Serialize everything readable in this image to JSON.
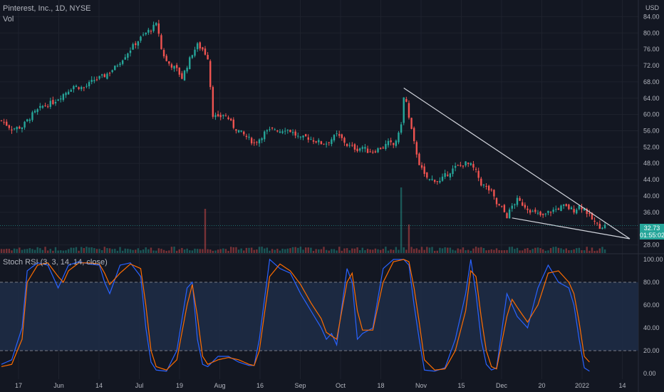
{
  "header": {
    "symbol": "Pinterest, Inc., 1D, NYSE",
    "volume_label": "Vol",
    "currency": "USD"
  },
  "indicator": {
    "title": "Stoch RSI (3, 3, 14, 14, close)"
  },
  "last_price": {
    "value": "32.73",
    "countdown": "01:55:02"
  },
  "colors": {
    "background": "#131722",
    "up": "#26a69a",
    "down": "#ef5350",
    "k_line": "#2962ff",
    "d_line": "#ff6d00",
    "trendline": "#d1d4dc",
    "band": "#1e2b45"
  },
  "chart_data": [
    {
      "type": "candlestick",
      "title": "Pinterest, Inc., 1D, NYSE",
      "ylim": [
        26,
        86
      ],
      "y_ticks": [
        "84.00",
        "80.00",
        "76.00",
        "72.00",
        "68.00",
        "64.00",
        "60.00",
        "56.00",
        "52.00",
        "48.00",
        "44.00",
        "40.00",
        "36.00",
        "32.00",
        "28.00"
      ],
      "x_ticks": [
        "17",
        "Jun",
        "14",
        "Jul",
        "19",
        "Aug",
        "16",
        "Sep",
        "Oct",
        "18",
        "Nov",
        "15",
        "Dec",
        "20",
        "2022",
        "14"
      ],
      "close_anchors": [
        [
          0,
          58.5
        ],
        [
          4,
          56.5
        ],
        [
          8,
          57
        ],
        [
          12,
          60
        ],
        [
          16,
          62
        ],
        [
          20,
          63
        ],
        [
          24,
          65
        ],
        [
          28,
          67
        ],
        [
          32,
          66.5
        ],
        [
          36,
          68.5
        ],
        [
          40,
          69.5
        ],
        [
          44,
          71.5
        ],
        [
          48,
          74.5
        ],
        [
          52,
          77.5
        ],
        [
          56,
          80
        ],
        [
          58,
          81
        ],
        [
          60,
          82
        ],
        [
          61,
          80
        ],
        [
          62,
          76
        ],
        [
          64,
          73
        ],
        [
          66,
          72
        ],
        [
          68,
          71
        ],
        [
          70,
          69
        ],
        [
          72,
          72
        ],
        [
          74,
          75
        ],
        [
          76,
          77
        ],
        [
          78,
          76
        ],
        [
          80,
          74
        ],
        [
          82,
          60
        ],
        [
          84,
          59
        ],
        [
          86,
          60
        ],
        [
          88,
          59
        ],
        [
          90,
          57
        ],
        [
          92,
          56
        ],
        [
          94,
          55
        ],
        [
          96,
          54
        ],
        [
          98,
          53
        ],
        [
          100,
          54
        ],
        [
          102,
          55.5
        ],
        [
          104,
          56
        ],
        [
          106,
          56.5
        ],
        [
          108,
          56
        ],
        [
          110,
          56.5
        ],
        [
          112,
          56
        ],
        [
          114,
          55
        ],
        [
          116,
          54
        ],
        [
          118,
          54.5
        ],
        [
          120,
          54
        ],
        [
          122,
          53.5
        ],
        [
          124,
          53
        ],
        [
          126,
          53
        ],
        [
          128,
          54
        ],
        [
          130,
          55
        ],
        [
          132,
          54
        ],
        [
          134,
          52.5
        ],
        [
          136,
          52
        ],
        [
          138,
          51.5
        ],
        [
          140,
          52
        ],
        [
          142,
          51
        ],
        [
          144,
          51
        ],
        [
          146,
          51.5
        ],
        [
          148,
          52
        ],
        [
          150,
          53
        ],
        [
          152,
          52.5
        ],
        [
          154,
          55
        ],
        [
          155,
          58
        ],
        [
          156,
          64
        ],
        [
          157,
          63
        ],
        [
          158,
          59
        ],
        [
          160,
          53
        ],
        [
          162,
          48
        ],
        [
          164,
          45
        ],
        [
          166,
          44
        ],
        [
          168,
          44
        ],
        [
          170,
          43.5
        ],
        [
          172,
          45
        ],
        [
          174,
          46
        ],
        [
          176,
          47
        ],
        [
          178,
          47.5
        ],
        [
          180,
          48
        ],
        [
          182,
          47.5
        ],
        [
          184,
          46
        ],
        [
          186,
          43
        ],
        [
          188,
          42
        ],
        [
          190,
          41
        ],
        [
          192,
          38
        ],
        [
          194,
          37
        ],
        [
          196,
          35
        ],
        [
          198,
          37.5
        ],
        [
          200,
          39
        ],
        [
          202,
          38
        ],
        [
          204,
          37
        ],
        [
          206,
          36
        ],
        [
          208,
          35.5
        ],
        [
          210,
          35
        ],
        [
          212,
          36
        ],
        [
          214,
          36.5
        ],
        [
          216,
          37
        ],
        [
          218,
          37.5
        ],
        [
          220,
          37
        ],
        [
          222,
          36.5
        ],
        [
          224,
          37.5
        ],
        [
          226,
          37
        ],
        [
          228,
          35
        ],
        [
          230,
          33.5
        ],
        [
          232,
          32.5
        ],
        [
          234,
          32.7
        ]
      ],
      "volume_note": "volume histogram colored by candle direction, spikes near Jul 31 and Oct 18",
      "annotations": [
        "descending trendline from Oct 18 high to Jan 2022",
        "lower trendline from Nov 30 low to Jan 2022"
      ]
    },
    {
      "type": "line",
      "title": "Stoch RSI (3, 3, 14, 14, close)",
      "ylim": [
        -5,
        105
      ],
      "y_ticks": [
        "100.00",
        "80.00",
        "60.00",
        "40.00",
        "20.00",
        "0.00"
      ],
      "band": [
        20,
        80
      ],
      "series": [
        {
          "name": "K",
          "anchors": [
            [
              0,
              8
            ],
            [
              4,
              12
            ],
            [
              8,
              40
            ],
            [
              10,
              90
            ],
            [
              14,
              97
            ],
            [
              18,
              95
            ],
            [
              22,
              75
            ],
            [
              24,
              85
            ],
            [
              26,
              95
            ],
            [
              30,
              98
            ],
            [
              34,
              96
            ],
            [
              38,
              95
            ],
            [
              40,
              80
            ],
            [
              42,
              70
            ],
            [
              46,
              95
            ],
            [
              50,
              97
            ],
            [
              54,
              85
            ],
            [
              56,
              40
            ],
            [
              58,
              10
            ],
            [
              60,
              3
            ],
            [
              64,
              2
            ],
            [
              68,
              20
            ],
            [
              72,
              75
            ],
            [
              74,
              80
            ],
            [
              76,
              30
            ],
            [
              78,
              8
            ],
            [
              80,
              6
            ],
            [
              84,
              15
            ],
            [
              88,
              15
            ],
            [
              92,
              10
            ],
            [
              96,
              7
            ],
            [
              98,
              7
            ],
            [
              100,
              30
            ],
            [
              104,
              100
            ],
            [
              108,
              92
            ],
            [
              112,
              88
            ],
            [
              116,
              70
            ],
            [
              120,
              55
            ],
            [
              124,
              40
            ],
            [
              126,
              30
            ],
            [
              128,
              35
            ],
            [
              130,
              25
            ],
            [
              134,
              92
            ],
            [
              136,
              80
            ],
            [
              138,
              30
            ],
            [
              140,
              35
            ],
            [
              144,
              40
            ],
            [
              148,
              92
            ],
            [
              152,
              100
            ],
            [
              156,
              100
            ],
            [
              158,
              95
            ],
            [
              160,
              60
            ],
            [
              162,
              30
            ],
            [
              164,
              3
            ],
            [
              168,
              2
            ],
            [
              172,
              5
            ],
            [
              176,
              30
            ],
            [
              180,
              70
            ],
            [
              182,
              100
            ],
            [
              184,
              70
            ],
            [
              186,
              30
            ],
            [
              188,
              8
            ],
            [
              190,
              3
            ],
            [
              192,
              5
            ],
            [
              196,
              70
            ],
            [
              198,
              60
            ],
            [
              200,
              50
            ],
            [
              204,
              40
            ],
            [
              208,
              75
            ],
            [
              212,
              95
            ],
            [
              216,
              80
            ],
            [
              220,
              75
            ],
            [
              222,
              60
            ],
            [
              224,
              30
            ],
            [
              226,
              5
            ],
            [
              228,
              2
            ]
          ]
        },
        {
          "name": "D",
          "anchors": [
            [
              0,
              6
            ],
            [
              4,
              8
            ],
            [
              8,
              30
            ],
            [
              10,
              80
            ],
            [
              14,
              95
            ],
            [
              18,
              97
            ],
            [
              22,
              85
            ],
            [
              24,
              80
            ],
            [
              26,
              90
            ],
            [
              30,
              97
            ],
            [
              34,
              97
            ],
            [
              38,
              96
            ],
            [
              40,
              88
            ],
            [
              42,
              78
            ],
            [
              46,
              88
            ],
            [
              50,
              96
            ],
            [
              54,
              92
            ],
            [
              56,
              60
            ],
            [
              58,
              20
            ],
            [
              60,
              6
            ],
            [
              64,
              3
            ],
            [
              68,
              12
            ],
            [
              72,
              60
            ],
            [
              74,
              78
            ],
            [
              76,
              50
            ],
            [
              78,
              15
            ],
            [
              80,
              8
            ],
            [
              84,
              12
            ],
            [
              88,
              14
            ],
            [
              92,
              12
            ],
            [
              96,
              8
            ],
            [
              98,
              7
            ],
            [
              100,
              20
            ],
            [
              104,
              85
            ],
            [
              108,
              96
            ],
            [
              112,
              90
            ],
            [
              116,
              78
            ],
            [
              120,
              62
            ],
            [
              124,
              48
            ],
            [
              126,
              36
            ],
            [
              128,
              33
            ],
            [
              130,
              30
            ],
            [
              134,
              80
            ],
            [
              136,
              88
            ],
            [
              138,
              55
            ],
            [
              140,
              38
            ],
            [
              144,
              38
            ],
            [
              148,
              80
            ],
            [
              152,
              98
            ],
            [
              156,
              100
            ],
            [
              158,
              98
            ],
            [
              160,
              75
            ],
            [
              162,
              45
            ],
            [
              164,
              12
            ],
            [
              168,
              3
            ],
            [
              172,
              4
            ],
            [
              176,
              20
            ],
            [
              180,
              55
            ],
            [
              182,
              90
            ],
            [
              184,
              85
            ],
            [
              186,
              50
            ],
            [
              188,
              20
            ],
            [
              190,
              6
            ],
            [
              192,
              4
            ],
            [
              196,
              50
            ],
            [
              198,
              65
            ],
            [
              200,
              58
            ],
            [
              204,
              45
            ],
            [
              208,
              60
            ],
            [
              212,
              88
            ],
            [
              216,
              90
            ],
            [
              220,
              80
            ],
            [
              222,
              70
            ],
            [
              224,
              45
            ],
            [
              226,
              15
            ],
            [
              228,
              10
            ]
          ]
        }
      ]
    }
  ]
}
